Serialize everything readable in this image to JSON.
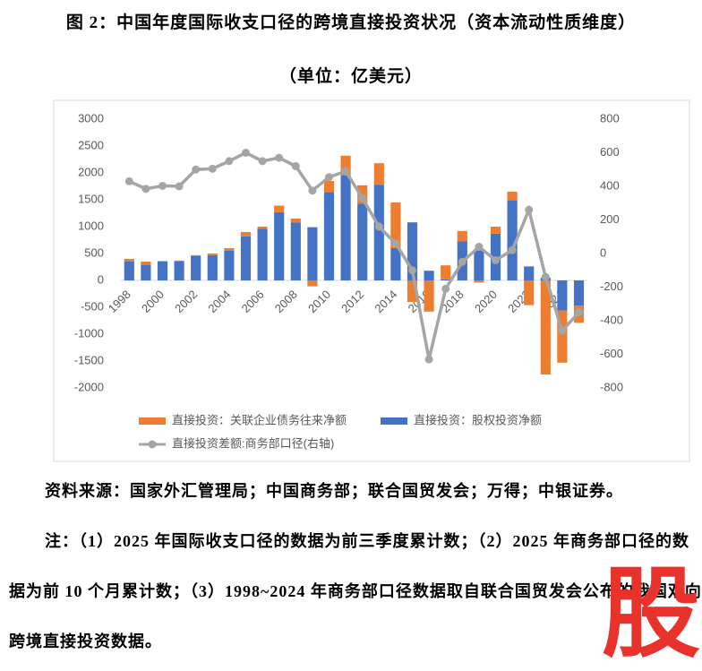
{
  "chart_data": {
    "type": "bar",
    "title": "图 2：中国年度国际收支口径的跨境直接投资状况（资本流动性质维度）",
    "subtitle": "（单位：亿美元）",
    "categories": [
      "1998",
      null,
      "2000",
      null,
      "2002",
      null,
      "2004",
      null,
      "2006",
      null,
      "2008",
      null,
      "2010",
      null,
      "2012",
      null,
      "2014",
      null,
      "2016",
      null,
      "2018",
      null,
      "2020",
      null,
      "2022",
      null,
      "2024",
      null
    ],
    "series": [
      {
        "name": "直接投资：股权投资净额",
        "color": "#4472c4",
        "stack": true,
        "values": [
          350,
          290,
          350,
          350,
          450,
          470,
          550,
          820,
          960,
          1270,
          1080,
          990,
          1640,
          1950,
          1430,
          1780,
          600,
          1080,
          180,
          20,
          730,
          580,
          870,
          1490,
          260,
          50,
          -560,
          -470
        ]
      },
      {
        "name": "直接投资：关联企业债务往来净额",
        "color": "#ed7d31",
        "stack": true,
        "values": [
          50,
          60,
          10,
          20,
          20,
          30,
          50,
          80,
          40,
          120,
          70,
          -110,
          210,
          370,
          340,
          400,
          850,
          -400,
          -580,
          260,
          190,
          -40,
          130,
          160,
          -460,
          -1750,
          -970,
          -320
        ]
      },
      {
        "name": "直接投资差额:商务部口径(右轴)",
        "color": "#a5a5a5",
        "type": "line",
        "axis": "y2",
        "values": [
          430,
          385,
          403,
          400,
          500,
          505,
          550,
          600,
          550,
          570,
          520,
          375,
          455,
          490,
          330,
          160,
          60,
          -100,
          -630,
          -210,
          -50,
          40,
          -40,
          20,
          260,
          -140,
          -460,
          -350
        ]
      }
    ],
    "legend_order": [
      1,
      0,
      2
    ],
    "ylim": [
      -2000,
      3000
    ],
    "yticks": [
      3000,
      2500,
      2000,
      1500,
      1000,
      500,
      0,
      -500,
      -1000,
      -1500,
      -2000
    ],
    "y2lim": [
      -800,
      800
    ],
    "y2ticks": [
      800,
      600,
      400,
      200,
      0,
      -200,
      -400,
      -600,
      -800
    ],
    "grid": false
  },
  "notes": {
    "source": "资料来源：国家外汇管理局；中国商务部；联合国贸发会；万得；中银证券。",
    "note": "注：（1）2025 年国际收支口径的数据为前三季度累计数；（2）2025 年商务部口径的数据为前 10 个月累计数；（3）1998~2024 年商务部口径数据取自联合国贸发会公布的我国双向跨境直接投资数据。",
    "watermark": "股"
  }
}
